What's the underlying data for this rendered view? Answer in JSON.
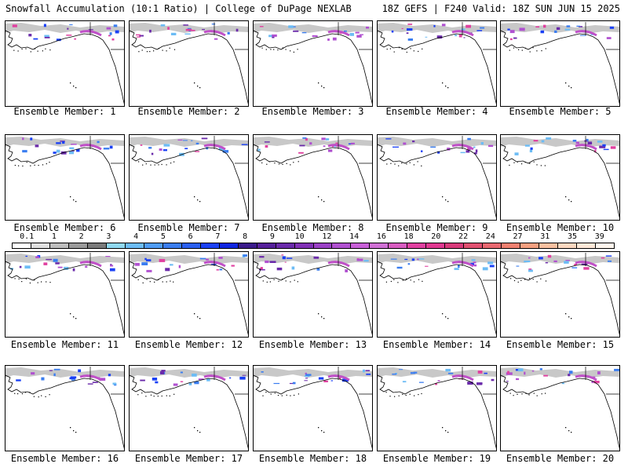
{
  "header": {
    "left_title": "Snowfall Accumulation (10:1 Ratio) | College of DuPage NEXLAB",
    "right_title": "18Z GEFS | F240 Valid: 18Z SUN JUN 15 2025"
  },
  "legend": {
    "ticks": [
      "0.1",
      "1",
      "2",
      "3",
      "4",
      "5",
      "6",
      "7",
      "8",
      "9",
      "10",
      "12",
      "14",
      "16",
      "18",
      "20",
      "22",
      "24",
      "27",
      "31",
      "35",
      "39"
    ],
    "colors": [
      "#ffffff",
      "#e0e0e0",
      "#bdbdbd",
      "#9a9a9a",
      "#7a7a7a",
      "#8fd8f0",
      "#6cbcf5",
      "#4f9cf5",
      "#3a7df0",
      "#2a5ff0",
      "#1a40f5",
      "#0f25e0",
      "#3a1a8a",
      "#55209a",
      "#6a2aaa",
      "#8030b5",
      "#9a40c5",
      "#b050d0",
      "#c860d8",
      "#d070d5",
      "#d85cc0",
      "#e040a0",
      "#e03890",
      "#d83a7a",
      "#e05070",
      "#e86870",
      "#f08070",
      "#f5a080",
      "#f8c0a0",
      "#fbd8c0",
      "#fde8d8",
      "#fff6ee"
    ]
  },
  "panels": [
    {
      "label": "Ensemble Member: 1"
    },
    {
      "label": "Ensemble Member: 2"
    },
    {
      "label": "Ensemble Member: 3"
    },
    {
      "label": "Ensemble Member: 4"
    },
    {
      "label": "Ensemble Member: 5"
    },
    {
      "label": "Ensemble Member: 6"
    },
    {
      "label": "Ensemble Member: 7"
    },
    {
      "label": "Ensemble Member: 8"
    },
    {
      "label": "Ensemble Member: 9"
    },
    {
      "label": "Ensemble Member: 10"
    },
    {
      "label": "Ensemble Member: 11"
    },
    {
      "label": "Ensemble Member: 12"
    },
    {
      "label": "Ensemble Member: 13"
    },
    {
      "label": "Ensemble Member: 14"
    },
    {
      "label": "Ensemble Member: 15"
    },
    {
      "label": "Ensemble Member: 16"
    },
    {
      "label": "Ensemble Member: 17"
    },
    {
      "label": "Ensemble Member: 18"
    },
    {
      "label": "Ensemble Member: 19"
    },
    {
      "label": "Ensemble Member: 20"
    }
  ]
}
